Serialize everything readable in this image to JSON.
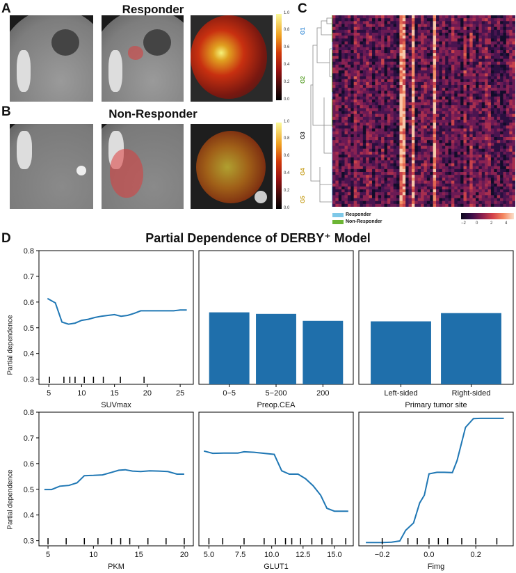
{
  "panels": {
    "A": {
      "letter": "A",
      "title": "Responder"
    },
    "B": {
      "letter": "B",
      "title": "Non-Responder"
    },
    "C": {
      "letter": "C"
    },
    "D": {
      "letter": "D",
      "title": "Partial Dependence of DERBY⁺ Model"
    }
  },
  "colorbar_ab": {
    "ticks": [
      "1.0",
      "0.8",
      "0.6",
      "0.4",
      "0.2",
      "0.0"
    ]
  },
  "heatmap": {
    "groups": [
      {
        "label": "G1",
        "color": "#3d8fd8"
      },
      {
        "label": "G2",
        "color": "#5aa02c"
      },
      {
        "label": "G3",
        "color": "#222222"
      },
      {
        "label": "G4",
        "color": "#c8a020"
      },
      {
        "label": "G5",
        "color": "#c8a020"
      }
    ],
    "legend": [
      {
        "label": "Responder",
        "color": "#7ec8e8"
      },
      {
        "label": "Non-Responder",
        "color": "#6cb534"
      }
    ],
    "colorbar_ticks": [
      "−2",
      "0",
      "2",
      "4"
    ],
    "colors": {
      "responder": "#7ec8e8",
      "non_responder": "#6cb534"
    }
  },
  "chart_data": [
    {
      "type": "line",
      "xlabel": "SUVmax",
      "ylabel": "Partial dependence",
      "ylim": [
        0.28,
        0.8
      ],
      "xlim": [
        3.5,
        27
      ],
      "xticks": [
        5,
        10,
        15,
        20,
        25
      ],
      "yticks": [
        0.3,
        0.4,
        0.5,
        0.6,
        0.7,
        0.8
      ],
      "x": [
        4.8,
        6,
        7,
        8,
        9,
        10,
        11,
        12,
        13,
        14,
        15,
        16,
        17,
        18,
        19,
        20,
        21,
        22,
        23,
        24,
        25,
        26
      ],
      "y": [
        0.614,
        0.597,
        0.522,
        0.514,
        0.518,
        0.529,
        0.533,
        0.54,
        0.545,
        0.548,
        0.551,
        0.545,
        0.548,
        0.556,
        0.566,
        0.566,
        0.566,
        0.566,
        0.566,
        0.566,
        0.569,
        0.569
      ],
      "rug": [
        5.1,
        7.3,
        8.2,
        9.0,
        10.4,
        11.8,
        13.3,
        15.9,
        19.5
      ]
    },
    {
      "type": "bar",
      "xlabel": "Preop.CEA",
      "ylim": [
        0.28,
        0.8
      ],
      "categories": [
        "0−5",
        "5−200",
        "200"
      ],
      "values": [
        0.56,
        0.554,
        0.527
      ]
    },
    {
      "type": "bar",
      "xlabel": "Primary tumor site",
      "ylim": [
        0.28,
        0.8
      ],
      "categories": [
        "Left-sided",
        "Right-sided"
      ],
      "values": [
        0.525,
        0.557
      ]
    },
    {
      "type": "line",
      "xlabel": "PKM",
      "ylabel": "Partial dependence",
      "ylim": [
        0.28,
        0.8
      ],
      "xlim": [
        4,
        21
      ],
      "xticks": [
        5,
        10,
        15,
        20
      ],
      "yticks": [
        0.3,
        0.4,
        0.5,
        0.6,
        0.7,
        0.8
      ],
      "x": [
        4.6,
        5.4,
        6.3,
        7.3,
        8.2,
        9.0,
        10.0,
        11.0,
        12.0,
        12.8,
        13.5,
        14.3,
        15.2,
        16.2,
        17.2,
        18.2,
        19.2,
        20.0
      ],
      "y": [
        0.499,
        0.499,
        0.512,
        0.515,
        0.525,
        0.553,
        0.554,
        0.556,
        0.566,
        0.574,
        0.576,
        0.571,
        0.569,
        0.572,
        0.571,
        0.569,
        0.559,
        0.559
      ],
      "rug": [
        5,
        7,
        9,
        10.5,
        12,
        13,
        14,
        16,
        18,
        20
      ]
    },
    {
      "type": "line",
      "xlabel": "GLUT1",
      "ylim": [
        0.28,
        0.8
      ],
      "xlim": [
        4.2,
        16.5
      ],
      "xticks": [
        5.0,
        7.5,
        10.0,
        12.5,
        15.0
      ],
      "xtick_labels": [
        "5.0",
        "7.5",
        "10.0",
        "12.5",
        "15.0"
      ],
      "x": [
        4.6,
        5.3,
        6.2,
        7.3,
        7.8,
        8.6,
        9.4,
        10.2,
        10.8,
        11.4,
        12.1,
        12.7,
        13.3,
        13.9,
        14.4,
        15.0,
        15.7,
        16.1
      ],
      "y": [
        0.649,
        0.64,
        0.641,
        0.641,
        0.646,
        0.644,
        0.64,
        0.636,
        0.572,
        0.559,
        0.559,
        0.541,
        0.514,
        0.477,
        0.426,
        0.415,
        0.415,
        0.415
      ],
      "rug": [
        5.0,
        6.1,
        7.8,
        9.4,
        10.3,
        11.1,
        11.6,
        12.3,
        13.2,
        14.0,
        14.8,
        15.9
      ]
    },
    {
      "type": "line",
      "xlabel": "Fimg",
      "ylim": [
        0.28,
        0.8
      ],
      "xlim": [
        -0.3,
        0.36
      ],
      "xticks": [
        -0.2,
        0.0,
        0.2
      ],
      "xtick_labels": [
        "−0.2",
        "0.0",
        "0.2"
      ],
      "x": [
        -0.27,
        -0.2,
        -0.16,
        -0.125,
        -0.1,
        -0.066,
        -0.04,
        -0.02,
        0.0,
        0.034,
        0.066,
        0.1,
        0.12,
        0.156,
        0.19,
        0.22,
        0.26,
        0.28,
        0.32
      ],
      "y": [
        0.293,
        0.293,
        0.294,
        0.299,
        0.34,
        0.369,
        0.447,
        0.477,
        0.56,
        0.566,
        0.566,
        0.565,
        0.612,
        0.741,
        0.775,
        0.776,
        0.776,
        0.776,
        0.776
      ],
      "rug": [
        -0.2,
        -0.09,
        -0.05,
        0.0,
        0.04,
        0.08,
        0.14,
        0.2,
        0.29
      ]
    }
  ]
}
